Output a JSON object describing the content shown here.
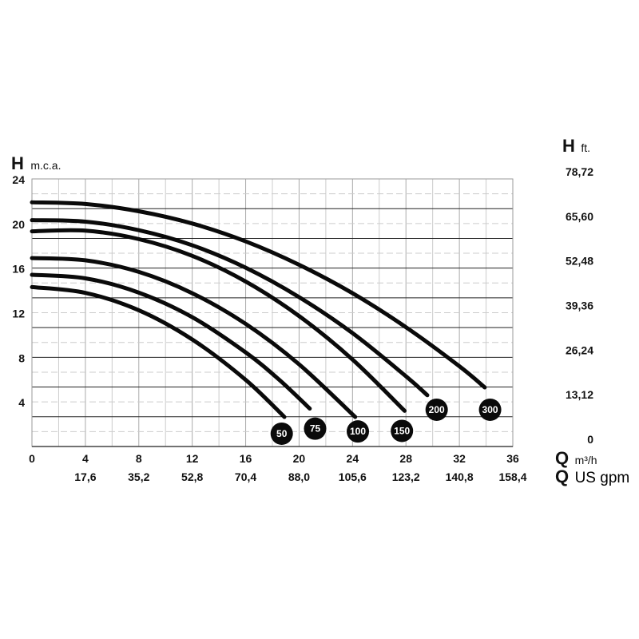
{
  "chart_data": {
    "type": "line",
    "title": "",
    "y_left_label": {
      "symbol": "H",
      "unit": "m.c.a."
    },
    "y_right_label": {
      "symbol": "H",
      "unit": "ft."
    },
    "x_label_primary": {
      "symbol": "Q",
      "unit": "m³/h"
    },
    "x_label_secondary": {
      "symbol": "Q",
      "unit": "US gpm"
    },
    "xlim": [
      0,
      36
    ],
    "ylim": [
      0,
      24
    ],
    "grid": true,
    "x_ticks": [
      "0",
      "4",
      "8",
      "12",
      "16",
      "20",
      "24",
      "28",
      "32",
      "36"
    ],
    "x_ticks_gpm": [
      "17,6",
      "35,2",
      "52,8",
      "70,4",
      "88,0",
      "105,6",
      "123,2",
      "140,8",
      "158,4"
    ],
    "y_ticks_left": [
      "4",
      "8",
      "12",
      "16",
      "20",
      "24"
    ],
    "y_ticks_right": [
      "78,72",
      "65,60",
      "52,48",
      "39,36",
      "26,24",
      "13,12",
      "0"
    ],
    "series": [
      {
        "name": "300",
        "badge": [
          34.3,
          3.3
        ],
        "points": [
          [
            0,
            21.9
          ],
          [
            4,
            21.75
          ],
          [
            8,
            21.1
          ],
          [
            12,
            20.0
          ],
          [
            16,
            18.4
          ],
          [
            20,
            16.3
          ],
          [
            24,
            13.75
          ],
          [
            28,
            10.7
          ],
          [
            32,
            7.2
          ],
          [
            33.9,
            5.3
          ]
        ]
      },
      {
        "name": "200",
        "badge": [
          30.3,
          3.3
        ],
        "points": [
          [
            0,
            20.3
          ],
          [
            4,
            20.17
          ],
          [
            8,
            19.4
          ],
          [
            12,
            18.05
          ],
          [
            16,
            16.04
          ],
          [
            20,
            13.4
          ],
          [
            24,
            10.17
          ],
          [
            28,
            6.3
          ],
          [
            29.6,
            4.6
          ]
        ]
      },
      {
        "name": "150",
        "badge": [
          27.7,
          1.4
        ],
        "points": [
          [
            0,
            19.3
          ],
          [
            4,
            19.36
          ],
          [
            8,
            18.6
          ],
          [
            12,
            17.1
          ],
          [
            16,
            14.8
          ],
          [
            20,
            11.7
          ],
          [
            24,
            7.8
          ],
          [
            27.9,
            3.2
          ]
        ]
      },
      {
        "name": "100",
        "badge": [
          24.4,
          1.35
        ],
        "points": [
          [
            0,
            16.9
          ],
          [
            4,
            16.7
          ],
          [
            8,
            15.66
          ],
          [
            12,
            13.75
          ],
          [
            16,
            11.0
          ],
          [
            20,
            7.37
          ],
          [
            24.2,
            2.65
          ]
        ]
      },
      {
        "name": "75",
        "badge": [
          21.2,
          1.6
        ],
        "points": [
          [
            0,
            15.4
          ],
          [
            4,
            15.08
          ],
          [
            8,
            13.8
          ],
          [
            12,
            11.6
          ],
          [
            16,
            8.44
          ],
          [
            18.5,
            6.0
          ],
          [
            20.8,
            3.4
          ]
        ]
      },
      {
        "name": "50",
        "badge": [
          18.7,
          1.15
        ],
        "points": [
          [
            0,
            14.3
          ],
          [
            4,
            13.78
          ],
          [
            8,
            12.22
          ],
          [
            12,
            9.6
          ],
          [
            16,
            5.98
          ],
          [
            18.9,
            2.65
          ]
        ]
      }
    ]
  }
}
